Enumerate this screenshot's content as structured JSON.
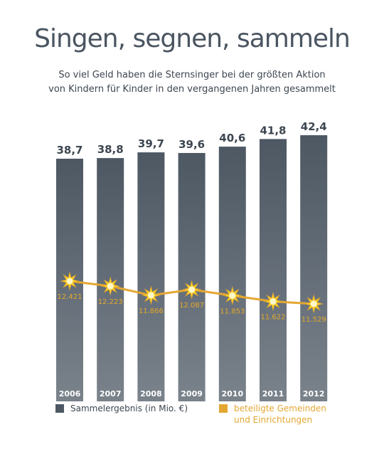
{
  "title": "Singen, segnen, sammeln",
  "subtitle_lines": [
    "So viel Geld haben die Sternsinger bei der größten Aktion",
    "von Kindern für Kinder in den vergangenen Jahren gesammelt"
  ],
  "colors": {
    "bar_top": "#4d5863",
    "bar_bottom": "#7a828b",
    "line": "#e3a731",
    "star": "#ffd322",
    "label_dark": "#3d4650"
  },
  "chart_data": {
    "type": "bar",
    "categories": [
      "2006",
      "2007",
      "2008",
      "2009",
      "2010",
      "2011",
      "2012"
    ],
    "series": [
      {
        "name": "Sammelergebnis (in Mio. €)",
        "type": "bar",
        "values": [
          38.7,
          38.8,
          39.7,
          39.6,
          40.6,
          41.8,
          42.4
        ],
        "labels": [
          "38,7",
          "38,8",
          "39,7",
          "39,6",
          "40,6",
          "41,8",
          "42,4"
        ]
      },
      {
        "name": "beteiligte Gemeinden und Einrichtungen",
        "type": "line",
        "values": [
          12421,
          12223,
          11866,
          12087,
          11853,
          11622,
          11529
        ],
        "labels": [
          "12.421",
          "12.223",
          "11.866",
          "12.087",
          "11.853",
          "11.622",
          "11.529"
        ]
      }
    ],
    "legend_position": "bottom"
  },
  "legend": [
    {
      "label": "Sammelergebnis (in Mio. €)",
      "color": "#4d5863"
    },
    {
      "label": "beteiligte Gemeinden\nund Einrichtungen",
      "color": "#e3a731"
    }
  ]
}
